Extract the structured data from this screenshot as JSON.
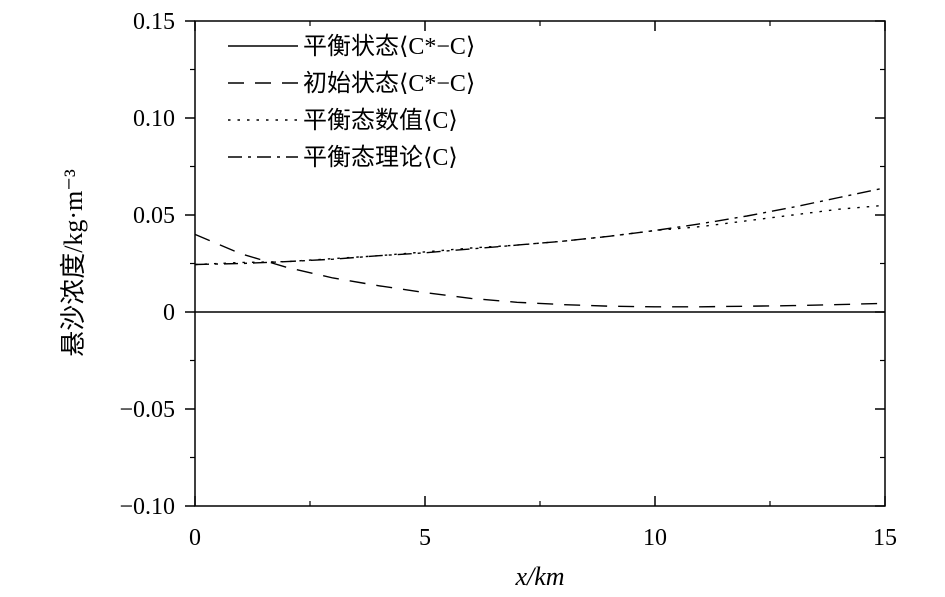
{
  "chart_data": {
    "type": "line",
    "xlabel": "x/km",
    "ylabel": "悬沙浓度/kg·m⁻³",
    "xlim": [
      0,
      15
    ],
    "ylim": [
      -0.1,
      0.15
    ],
    "x_ticks": [
      "0",
      "5",
      "10",
      "15"
    ],
    "y_ticks": [
      "−0.10",
      "−0.05",
      "0",
      "0.05",
      "0.10",
      "0.15"
    ],
    "x_tick_values": [
      0,
      5,
      10,
      15
    ],
    "y_tick_values": [
      -0.1,
      -0.05,
      0,
      0.05,
      0.1,
      0.15
    ],
    "grid": false,
    "legend_position": "top-left",
    "series": [
      {
        "name": "平衡状态⟨C*−C⟩",
        "style": "solid",
        "x": [
          0,
          1,
          2,
          3,
          4,
          5,
          6,
          7,
          8,
          9,
          10,
          11,
          12,
          13,
          14,
          15
        ],
        "y": [
          0,
          0,
          0,
          0,
          0,
          0,
          0,
          0,
          0,
          0,
          0,
          0,
          0,
          0,
          0,
          0
        ]
      },
      {
        "name": "初始状态⟨C*−C⟩",
        "style": "dashed",
        "x": [
          0,
          1,
          2,
          3,
          4,
          5,
          6,
          7,
          8,
          9,
          10,
          11,
          12,
          13,
          14,
          15
        ],
        "y": [
          0.04,
          0.03,
          0.023,
          0.0175,
          0.0135,
          0.01,
          0.007,
          0.005,
          0.0038,
          0.003,
          0.0027,
          0.0027,
          0.003,
          0.0033,
          0.0038,
          0.0045
        ]
      },
      {
        "name": "平衡态数值⟨C⟩",
        "style": "dotted",
        "x": [
          0,
          1,
          2,
          3,
          4,
          5,
          6,
          7,
          8,
          9,
          10,
          11,
          12,
          13,
          14,
          15
        ],
        "y": [
          0.0245,
          0.0255,
          0.026,
          0.0275,
          0.029,
          0.031,
          0.033,
          0.0345,
          0.0365,
          0.039,
          0.042,
          0.044,
          0.047,
          0.05,
          0.053,
          0.055
        ]
      },
      {
        "name": "平衡态理论⟨C⟩",
        "style": "dashdot",
        "x": [
          0,
          1,
          2,
          3,
          4,
          5,
          6,
          7,
          8,
          9,
          10,
          11,
          12,
          13,
          14,
          15
        ],
        "y": [
          0.0245,
          0.025,
          0.026,
          0.0272,
          0.029,
          0.0305,
          0.0325,
          0.0345,
          0.0365,
          0.039,
          0.042,
          0.0455,
          0.0495,
          0.054,
          0.059,
          0.064
        ]
      }
    ]
  }
}
